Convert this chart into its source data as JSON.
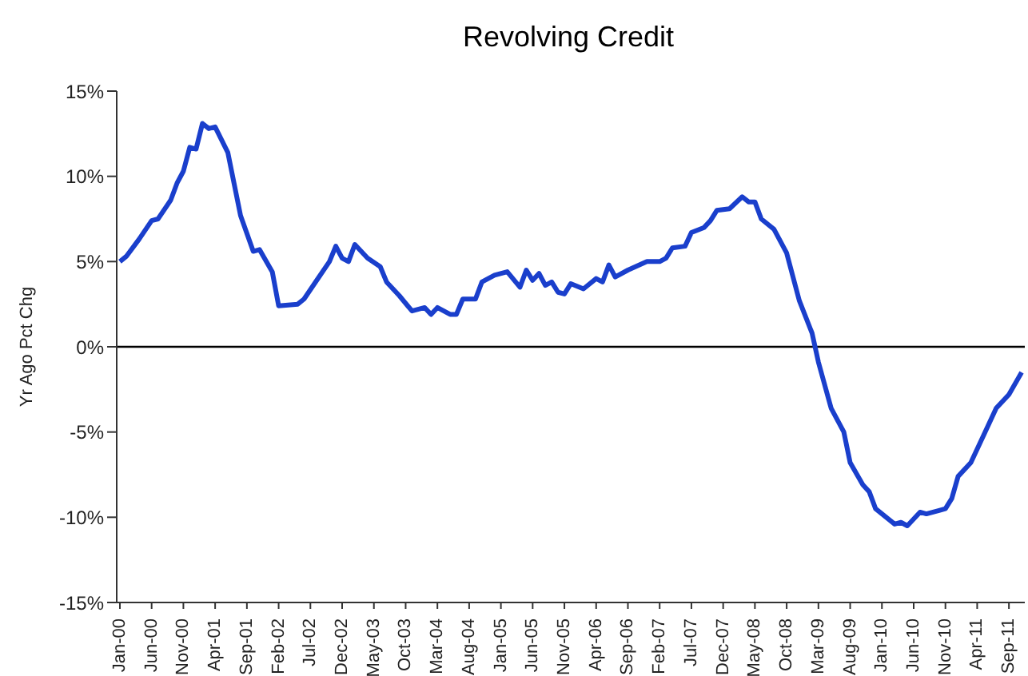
{
  "chart_data": {
    "type": "line",
    "title": "Revolving Credit",
    "ylabel": "Yr Ago Pct Chg",
    "color": "#1a3fcc",
    "x": [
      "2000-01",
      "2000-02",
      "2000-04",
      "2000-06",
      "2000-07",
      "2000-09",
      "2000-10",
      "2000-11",
      "2000-12",
      "2001-01",
      "2001-02",
      "2001-03",
      "2001-04",
      "2001-06",
      "2001-08",
      "2001-10",
      "2001-11",
      "2002-01",
      "2002-02",
      "2002-05",
      "2002-06",
      "2002-08",
      "2002-10",
      "2002-11",
      "2002-12",
      "2003-01",
      "2003-02",
      "2003-04",
      "2003-06",
      "2003-07",
      "2003-09",
      "2003-11",
      "2004-01",
      "2004-02",
      "2004-03",
      "2004-05",
      "2004-06",
      "2004-07",
      "2004-09",
      "2004-10",
      "2004-12",
      "2005-02",
      "2005-04",
      "2005-05",
      "2005-06",
      "2005-07",
      "2005-08",
      "2005-09",
      "2005-10",
      "2005-11",
      "2005-12",
      "2006-02",
      "2006-04",
      "2006-05",
      "2006-06",
      "2006-07",
      "2006-09",
      "2006-12",
      "2007-02",
      "2007-03",
      "2007-04",
      "2007-06",
      "2007-07",
      "2007-09",
      "2007-10",
      "2007-11",
      "2008-01",
      "2008-03",
      "2008-04",
      "2008-05",
      "2008-06",
      "2008-08",
      "2008-10",
      "2008-12",
      "2009-02",
      "2009-03",
      "2009-05",
      "2009-07",
      "2009-08",
      "2009-10",
      "2009-11",
      "2009-12",
      "2010-03",
      "2010-04",
      "2010-05",
      "2010-07",
      "2010-08",
      "2010-10",
      "2010-11",
      "2010-12",
      "2011-01",
      "2011-03",
      "2011-05",
      "2011-07",
      "2011-09",
      "2011-11"
    ],
    "values": [
      5.0,
      5.3,
      6.3,
      7.4,
      7.5,
      8.6,
      9.6,
      10.3,
      11.7,
      11.6,
      13.1,
      12.8,
      12.9,
      11.4,
      7.7,
      5.6,
      5.7,
      4.4,
      2.4,
      2.5,
      2.8,
      3.9,
      5.0,
      5.9,
      5.2,
      5.0,
      6.0,
      5.2,
      4.7,
      3.8,
      3.0,
      2.1,
      2.3,
      1.9,
      2.3,
      1.9,
      1.9,
      2.8,
      2.8,
      3.8,
      4.2,
      4.4,
      3.5,
      4.5,
      3.9,
      4.3,
      3.6,
      3.8,
      3.2,
      3.1,
      3.7,
      3.4,
      4.0,
      3.8,
      4.8,
      4.1,
      4.5,
      5.0,
      5.0,
      5.2,
      5.8,
      5.9,
      6.7,
      7.0,
      7.4,
      8.0,
      8.1,
      8.8,
      8.5,
      8.5,
      7.5,
      6.9,
      5.5,
      2.7,
      0.8,
      -0.9,
      -3.6,
      -5.0,
      -6.8,
      -8.1,
      -8.5,
      -9.5,
      -10.4,
      -10.3,
      -10.5,
      -9.7,
      -9.8,
      -9.6,
      -9.5,
      -8.9,
      -7.6,
      -6.8,
      -5.2,
      -3.6,
      -2.8,
      -1.5
    ],
    "xlim": [
      "2000-01",
      "2011-11"
    ],
    "xticks": [
      {
        "value": "2000-01",
        "label": "Jan-00"
      },
      {
        "value": "2000-06",
        "label": "Jun-00"
      },
      {
        "value": "2000-11",
        "label": "Nov-00"
      },
      {
        "value": "2001-04",
        "label": "Apr-01"
      },
      {
        "value": "2001-09",
        "label": "Sep-01"
      },
      {
        "value": "2002-02",
        "label": "Feb-02"
      },
      {
        "value": "2002-07",
        "label": "Jul-02"
      },
      {
        "value": "2002-12",
        "label": "Dec-02"
      },
      {
        "value": "2003-05",
        "label": "May-03"
      },
      {
        "value": "2003-10",
        "label": "Oct-03"
      },
      {
        "value": "2004-03",
        "label": "Mar-04"
      },
      {
        "value": "2004-08",
        "label": "Aug-04"
      },
      {
        "value": "2005-01",
        "label": "Jan-05"
      },
      {
        "value": "2005-06",
        "label": "Jun-05"
      },
      {
        "value": "2005-11",
        "label": "Nov-05"
      },
      {
        "value": "2006-04",
        "label": "Apr-06"
      },
      {
        "value": "2006-09",
        "label": "Sep-06"
      },
      {
        "value": "2007-02",
        "label": "Feb-07"
      },
      {
        "value": "2007-07",
        "label": "Jul-07"
      },
      {
        "value": "2007-12",
        "label": "Dec-07"
      },
      {
        "value": "2008-05",
        "label": "May-08"
      },
      {
        "value": "2008-10",
        "label": "Oct-08"
      },
      {
        "value": "2009-03",
        "label": "Mar-09"
      },
      {
        "value": "2009-08",
        "label": "Aug-09"
      },
      {
        "value": "2010-01",
        "label": "Jan-10"
      },
      {
        "value": "2010-06",
        "label": "Jun-10"
      },
      {
        "value": "2010-11",
        "label": "Nov-10"
      },
      {
        "value": "2011-04",
        "label": "Apr-11"
      },
      {
        "value": "2011-09",
        "label": "Sep-11"
      }
    ],
    "ylim": [
      -15,
      15
    ],
    "yticks": [
      {
        "value": -15,
        "label": "-15%"
      },
      {
        "value": -10,
        "label": "-10%"
      },
      {
        "value": -5,
        "label": "-5%"
      },
      {
        "value": 0,
        "label": "0%"
      },
      {
        "value": 5,
        "label": "5%"
      },
      {
        "value": 10,
        "label": "10%"
      },
      {
        "value": 15,
        "label": "15%"
      }
    ],
    "ref_lines": [
      {
        "axis": "y",
        "value": 0,
        "color": "#000000"
      }
    ]
  }
}
